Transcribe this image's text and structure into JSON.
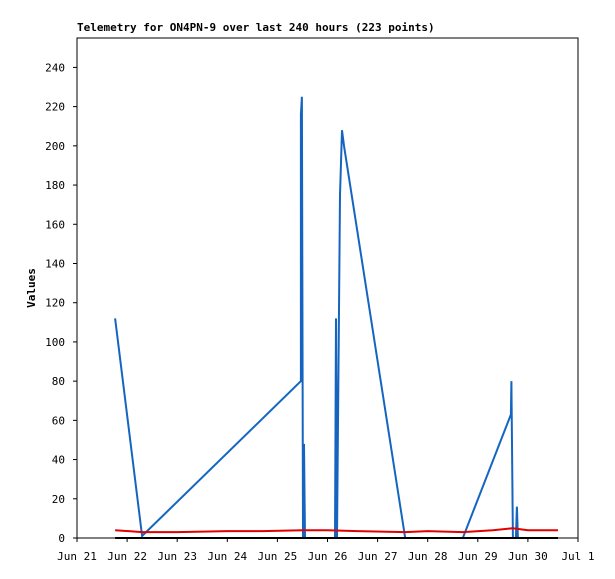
{
  "chart_data": {
    "type": "line",
    "title": "Telemetry for ON4PN-9 over last 240 hours (223 points)",
    "y_label": "Values",
    "xlim": [
      21,
      31
    ],
    "ylim": [
      0,
      255
    ],
    "xticks": [
      {
        "value": 21,
        "label": "Jun 21"
      },
      {
        "value": 22,
        "label": "Jun 22"
      },
      {
        "value": 23,
        "label": "Jun 23"
      },
      {
        "value": 24,
        "label": "Jun 24"
      },
      {
        "value": 25,
        "label": "Jun 25"
      },
      {
        "value": 26,
        "label": "Jun 26"
      },
      {
        "value": 27,
        "label": "Jun 27"
      },
      {
        "value": 28,
        "label": "Jun 28"
      },
      {
        "value": 29,
        "label": "Jun 29"
      },
      {
        "value": 30,
        "label": "Jun 30"
      },
      {
        "value": 31,
        "label": "Jul 1"
      }
    ],
    "yticks": [
      0,
      20,
      40,
      60,
      80,
      100,
      120,
      140,
      160,
      180,
      200,
      220,
      240
    ],
    "series": [
      {
        "color": "#1565c0",
        "x": [
          21.76,
          22.3,
          25.47,
          25.47,
          25.49,
          25.51,
          25.53,
          25.55,
          26.15,
          26.17,
          26.19,
          26.25,
          26.29,
          26.33,
          27.55,
          28.7,
          29.66,
          29.67,
          29.7,
          29.76,
          29.78,
          29.8
        ],
        "values": [
          112,
          1,
          80,
          216,
          225,
          0,
          48,
          0,
          0,
          112,
          0,
          175,
          208,
          200,
          0,
          0,
          63,
          80,
          0,
          0,
          16,
          0
        ]
      },
      {
        "color": "#e00000",
        "x": [
          21.76,
          22.3,
          23.0,
          24.0,
          24.7,
          25.5,
          26.0,
          26.6,
          27.55,
          28.0,
          28.7,
          29.3,
          29.7,
          30.0,
          30.6
        ],
        "values": [
          4,
          3,
          3,
          3.5,
          3.5,
          4,
          4,
          3.5,
          3,
          3.5,
          3,
          4,
          5,
          4,
          4
        ]
      },
      {
        "color": "#000000",
        "x": [
          21.76,
          30.6
        ],
        "values": [
          0,
          0
        ]
      }
    ]
  }
}
